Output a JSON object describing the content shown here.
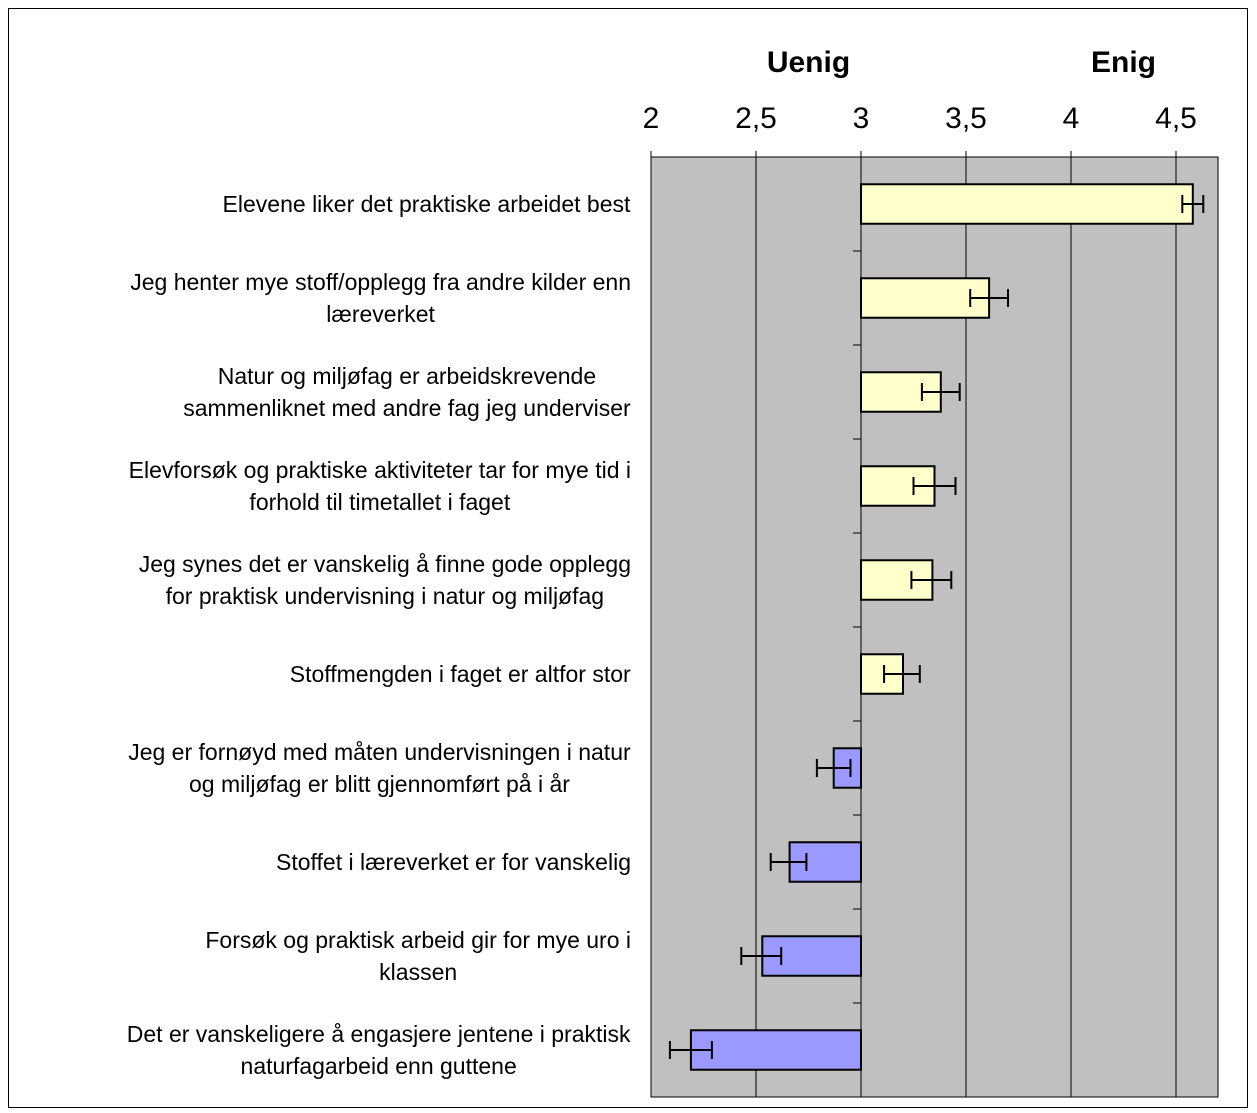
{
  "chart_data": {
    "type": "bar",
    "orientation": "horizontal",
    "title": "",
    "header_left": "Uenig",
    "header_right": "Enig",
    "xlim": [
      2,
      4.7
    ],
    "baseline": 3,
    "x_ticks": [
      2,
      2.5,
      3,
      3.5,
      4,
      4.5
    ],
    "x_tick_labels": [
      "2",
      "2,5",
      "3",
      "3,5",
      "4",
      "4,5"
    ],
    "grid": true,
    "colors": {
      "plot_bg": "#c0c0c0",
      "positive": "#ffffcc",
      "negative": "#9999ff",
      "bar_border": "#000000",
      "gridline": "#000000"
    },
    "categories": [
      [
        "Elevene liker det praktiske arbeidet best"
      ],
      [
        "Jeg henter mye stoff/opplegg fra andre kilder enn",
        "læreverket"
      ],
      [
        "Natur og miljøfag er arbeidskrevende",
        "sammenliknet med andre fag jeg underviser"
      ],
      [
        "Elevforsøk og praktiske aktiviteter tar for mye tid i",
        "forhold til timetallet i faget"
      ],
      [
        "Jeg synes det er vanskelig å finne gode opplegg",
        "for praktisk undervisning i natur og miljøfag"
      ],
      [
        "Stoffmengden i faget er altfor stor"
      ],
      [
        "Jeg er fornøyd med måten undervisningen i natur",
        "og miljøfag er blitt gjennomført på i år"
      ],
      [
        "Stoffet i læreverket er for vanskelig"
      ],
      [
        "Forsøk og praktisk arbeid gir for mye uro i",
        "klassen"
      ],
      [
        "Det er vanskeligere å engasjere jentene i praktisk",
        "naturfagarbeid enn guttene"
      ]
    ],
    "values": [
      4.58,
      3.61,
      3.38,
      3.35,
      3.34,
      3.2,
      2.87,
      2.66,
      2.53,
      2.19
    ],
    "error_low": [
      4.53,
      3.52,
      3.29,
      3.25,
      3.24,
      3.11,
      2.79,
      2.57,
      2.43,
      2.09
    ],
    "error_high": [
      4.63,
      3.7,
      3.47,
      3.45,
      3.43,
      3.28,
      2.95,
      2.74,
      2.62,
      2.29
    ]
  }
}
